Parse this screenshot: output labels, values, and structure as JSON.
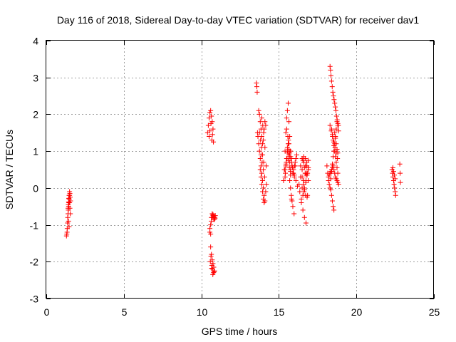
{
  "chart_data": {
    "type": "scatter",
    "title": "Day 116 of 2018, Sidereal Day-to-day VTEC variation (SDTVAR) for receiver dav1",
    "xlabel": "GPS time / hours",
    "ylabel": "SDTVAR / TECUs",
    "xlim": [
      0,
      25
    ],
    "ylim": [
      -3,
      4
    ],
    "xticks": [
      0,
      5,
      10,
      15,
      20,
      25
    ],
    "yticks": [
      -3,
      -2,
      -1,
      0,
      1,
      2,
      3,
      4
    ],
    "xtick_labels": [
      "0",
      "5",
      "10",
      "15",
      "20",
      "25"
    ],
    "ytick_labels": [
      "-3",
      "-2",
      "-1",
      "0",
      "1",
      "2",
      "3",
      "4"
    ],
    "grid": true,
    "marker": "+",
    "color": "#ff0000",
    "series": [
      {
        "name": "dav1",
        "x": [
          1.3,
          1.32,
          1.34,
          1.35,
          1.37,
          1.38,
          1.4,
          1.42,
          1.44,
          1.46,
          1.48,
          1.5,
          1.52,
          1.54,
          1.56,
          1.4,
          1.42,
          1.44,
          1.45,
          1.47,
          1.5,
          1.52,
          1.55,
          1.43,
          1.47,
          1.5,
          10.4,
          10.45,
          10.5,
          10.55,
          10.6,
          10.65,
          10.7,
          10.75,
          10.5,
          10.55,
          10.62,
          10.68,
          10.72,
          10.78,
          10.55,
          10.6,
          10.65,
          10.7,
          10.75,
          10.8,
          10.85,
          10.6,
          10.65,
          10.7,
          10.75,
          10.8,
          10.85,
          10.62,
          10.68,
          10.72,
          10.78,
          10.55,
          10.6,
          10.65,
          10.7,
          10.75,
          10.8,
          10.85,
          10.9,
          10.58,
          10.66,
          10.74,
          10.82,
          10.88,
          13.55,
          13.58,
          13.6,
          13.62,
          13.65,
          13.7,
          13.75,
          13.8,
          13.85,
          13.9,
          13.95,
          14.0,
          14.05,
          14.1,
          14.15,
          14.2,
          13.7,
          13.75,
          13.8,
          13.85,
          13.9,
          13.95,
          14.0,
          14.05,
          14.1,
          14.15,
          13.8,
          13.85,
          13.9,
          13.95,
          14.0,
          14.05,
          13.85,
          13.92,
          14.0,
          14.08,
          13.75,
          13.82,
          13.88,
          13.95,
          14.02,
          14.1,
          14.18,
          13.9,
          13.96,
          14.02,
          15.3,
          15.35,
          15.4,
          15.45,
          15.5,
          15.55,
          15.6,
          15.65,
          15.7,
          15.75,
          15.8,
          15.85,
          15.9,
          15.95,
          16.0,
          16.05,
          16.1,
          16.15,
          15.4,
          15.45,
          15.5,
          15.55,
          15.6,
          15.65,
          15.7,
          15.75,
          15.42,
          15.48,
          15.55,
          15.62,
          15.68,
          15.75,
          15.5,
          15.58,
          15.65,
          15.72,
          15.78,
          15.85,
          15.92,
          15.6,
          15.68,
          15.75,
          15.82,
          15.9,
          15.98,
          16.05,
          15.4,
          15.46,
          15.52,
          15.58,
          15.64,
          15.7,
          15.76,
          15.82,
          15.88,
          15.94,
          16.0,
          15.7,
          15.75,
          15.8,
          15.85,
          16.0,
          16.1,
          16.2,
          16.3,
          16.4,
          16.5,
          16.6,
          16.7,
          16.8,
          16.9,
          16.35,
          16.45,
          16.55,
          16.65,
          16.75,
          16.85,
          16.4,
          16.5,
          16.6,
          16.7,
          16.8,
          16.9,
          16.45,
          16.55,
          16.65,
          16.75,
          16.85,
          16.5,
          16.6,
          16.7,
          16.8,
          16.55,
          16.65,
          16.75,
          16.62,
          16.72,
          16.82,
          16.6,
          16.7,
          16.8,
          16.9,
          16.5,
          16.58,
          16.66,
          16.74,
          16.82,
          16.9,
          18.1,
          18.15,
          18.2,
          18.25,
          18.3,
          18.35,
          18.4,
          18.45,
          18.5,
          18.55,
          18.6,
          18.65,
          18.7,
          18.75,
          18.8,
          18.85,
          18.3,
          18.33,
          18.36,
          18.4,
          18.44,
          18.48,
          18.52,
          18.56,
          18.6,
          18.64,
          18.68,
          18.72,
          18.76,
          18.8,
          18.84,
          18.4,
          18.45,
          18.5,
          18.55,
          18.6,
          18.65,
          18.7,
          18.75,
          18.8,
          18.35,
          18.4,
          18.45,
          18.5,
          18.55,
          18.6,
          18.65,
          18.7,
          18.75,
          18.8,
          18.2,
          18.25,
          18.3,
          18.35,
          18.4,
          18.45,
          18.5,
          18.55,
          18.6,
          18.65,
          18.7,
          18.75,
          18.8,
          18.85,
          18.3,
          18.38,
          18.46,
          18.54,
          18.62,
          18.7,
          18.78,
          22.3,
          22.33,
          22.36,
          22.4,
          22.43,
          22.46,
          22.5,
          22.53,
          22.35,
          22.4,
          22.45,
          22.5,
          22.8,
          22.82,
          22.84
        ],
        "y": [
          -1.3,
          -1.25,
          -1.2,
          -1.1,
          -0.95,
          -0.8,
          -0.7,
          -0.6,
          -0.5,
          -0.4,
          -0.3,
          -0.2,
          -0.15,
          -0.25,
          -0.35,
          -0.55,
          -0.45,
          -0.38,
          -0.28,
          -0.2,
          -0.4,
          -0.55,
          -0.7,
          -0.9,
          -1.05,
          -0.1,
          1.5,
          1.7,
          1.9,
          2.05,
          2.1,
          1.95,
          1.8,
          1.6,
          1.4,
          1.55,
          1.75,
          1.3,
          1.45,
          1.25,
          -1.2,
          -1.0,
          -0.8,
          -0.7,
          -0.75,
          -0.85,
          -0.8,
          -1.6,
          -1.8,
          -1.95,
          -2.05,
          -2.15,
          -2.25,
          -1.85,
          -2.1,
          -2.2,
          -2.3,
          -1.1,
          -1.25,
          -0.9,
          -0.8,
          -0.72,
          -0.78,
          -0.85,
          -0.75,
          -2.0,
          -2.18,
          -2.35,
          -2.28,
          -0.82,
          2.85,
          2.75,
          2.6,
          1.5,
          1.4,
          1.2,
          1.0,
          0.8,
          0.6,
          0.4,
          0.2,
          0.0,
          -0.2,
          -0.35,
          -0.1,
          0.1,
          2.1,
          2.0,
          1.8,
          1.6,
          1.4,
          1.2,
          1.3,
          1.6,
          1.8,
          1.7,
          0.5,
          0.3,
          0.1,
          -0.1,
          -0.3,
          -0.4,
          0.9,
          0.7,
          0.5,
          0.3,
          1.5,
          1.3,
          1.1,
          0.9,
          0.7,
          1.1,
          0.6,
          1.9,
          1.7,
          1.5,
          0.2,
          0.5,
          1.0,
          1.5,
          1.9,
          2.1,
          2.3,
          1.8,
          1.4,
          1.0,
          0.8,
          0.6,
          0.4,
          0.5,
          0.6,
          0.7,
          0.8,
          0.9,
          0.3,
          0.6,
          0.8,
          1.0,
          1.2,
          0.9,
          0.7,
          0.5,
          0.4,
          0.7,
          1.1,
          1.3,
          0.85,
          0.45,
          1.6,
          1.4,
          1.2,
          1.0,
          0.8,
          0.6,
          0.4,
          0.75,
          0.55,
          0.35,
          -0.3,
          -0.5,
          -0.7,
          0.6,
          0.5,
          0.65,
          0.8,
          0.95,
          1.05,
          0.95,
          0.85,
          0.7,
          0.55,
          0.4,
          0.3,
          0.2,
          0.0,
          -0.2,
          -0.35,
          0.35,
          0.2,
          0.05,
          0.1,
          0.3,
          0.5,
          0.7,
          0.8,
          0.7,
          0.5,
          -0.1,
          -0.3,
          -0.2,
          0.0,
          0.2,
          0.4,
          0.6,
          0.8,
          0.85,
          0.6,
          0.4,
          0.2,
          -0.4,
          -0.6,
          -0.8,
          -0.95,
          -0.2,
          0.0,
          0.2,
          0.4,
          0.6,
          0.75,
          0.55,
          0.35,
          -0.1,
          -0.2,
          -0.25,
          0.2,
          0.4,
          0.6,
          0.75,
          0.3,
          0.1,
          -0.05,
          0.15,
          0.35,
          0.55,
          0.6,
          0.4,
          0.2,
          0.1,
          0.0,
          0.25,
          0.45,
          0.65,
          0.85,
          1.0,
          1.2,
          1.4,
          1.6,
          1.8,
          1.7,
          1.55,
          3.3,
          3.2,
          3.05,
          2.9,
          2.75,
          2.6,
          2.5,
          2.4,
          2.3,
          2.2,
          2.1,
          1.95,
          1.85,
          1.75,
          1.7,
          1.6,
          1.45,
          1.3,
          1.15,
          1.0,
          0.85,
          0.7,
          0.55,
          0.4,
          -0.05,
          -0.2,
          -0.35,
          -0.5,
          -0.6,
          1.5,
          1.35,
          1.2,
          1.05,
          0.95,
          0.3,
          0.35,
          0.4,
          0.45,
          0.5,
          0.55,
          0.6,
          0.5,
          0.4,
          0.3,
          0.25,
          0.2,
          0.15,
          0.1,
          1.7,
          1.55,
          1.4,
          1.25,
          1.1,
          0.95,
          0.8,
          0.5,
          0.4,
          0.3,
          0.2,
          0.1,
          0.0,
          -0.1,
          -0.2,
          0.55,
          0.45,
          0.35,
          0.25,
          0.65,
          0.4,
          0.15
        ]
      }
    ]
  }
}
